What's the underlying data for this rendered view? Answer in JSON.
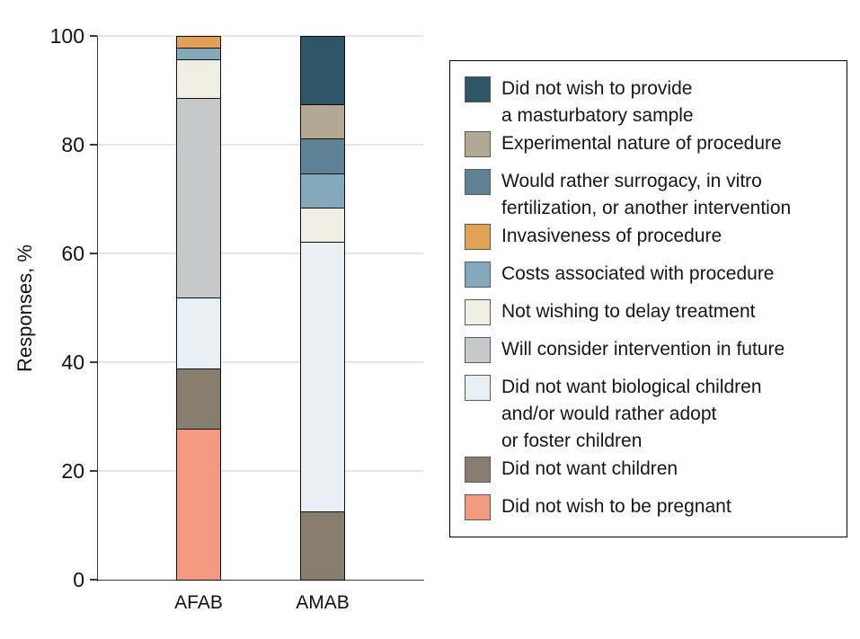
{
  "chart_data": {
    "type": "bar",
    "stacked": true,
    "title": "",
    "xlabel": "",
    "ylabel": "Responses, %",
    "ylim": [
      0,
      100
    ],
    "yticks": [
      0,
      20,
      40,
      60,
      80,
      100
    ],
    "grid": true,
    "legend_position": "right",
    "categories": [
      "AFAB",
      "AMAB"
    ],
    "series": [
      {
        "name": "Did not wish to provide a masturbatory sample",
        "color": "#2e5566",
        "values": [
          0,
          12.5
        ]
      },
      {
        "name": "Experimental nature of procedure",
        "color": "#b2a894",
        "values": [
          0,
          6.25
        ]
      },
      {
        "name": "Would rather surrogacy, in vitro fertilization, or another intervention",
        "color": "#5d8195",
        "values": [
          0,
          6.25
        ]
      },
      {
        "name": "Invasiveness of procedure",
        "color": "#e3a156",
        "values": [
          2,
          0
        ]
      },
      {
        "name": "Costs associated with procedure",
        "color": "#84a9bb",
        "values": [
          2,
          6.25
        ]
      },
      {
        "name": "Not wishing to delay treatment",
        "color": "#efeee2",
        "values": [
          7,
          6.25
        ]
      },
      {
        "name": "Will consider intervention in future",
        "color": "#c7c8ca",
        "values": [
          37,
          0
        ]
      },
      {
        "name": "Did not want biological children and/or would rather adopt or foster children",
        "color": "#e7eff4",
        "values": [
          13,
          50
        ]
      },
      {
        "name": "Did not want children",
        "color": "#877d6e",
        "values": [
          11,
          12.5
        ]
      },
      {
        "name": "Did not wish to be pregnant",
        "color": "#f39980",
        "values": [
          28,
          0
        ]
      }
    ]
  },
  "legend": {
    "items": [
      {
        "label": "Did not wish to provide\na masturbatory sample",
        "color": "#2e5566"
      },
      {
        "label": "Experimental nature of procedure",
        "color": "#b2a894"
      },
      {
        "label": "Would rather surrogacy, in vitro\nfertilization, or another intervention",
        "color": "#5d8195"
      },
      {
        "label": "Invasiveness of procedure",
        "color": "#e3a156"
      },
      {
        "label": "Costs associated with procedure",
        "color": "#84a9bb"
      },
      {
        "label": "Not wishing to delay treatment",
        "color": "#efeee2"
      },
      {
        "label": "Will consider intervention in future",
        "color": "#c7c8ca"
      },
      {
        "label": "Did not want biological children\nand/or would rather adopt\nor foster children",
        "color": "#e7eff4"
      },
      {
        "label": "Did not want children",
        "color": "#877d6e"
      },
      {
        "label": "Did not wish to be pregnant",
        "color": "#f39980"
      }
    ]
  },
  "colors": {
    "grid": "#e6e6e6",
    "axis": "#3a3a3a",
    "text": "#1a1a1a"
  }
}
